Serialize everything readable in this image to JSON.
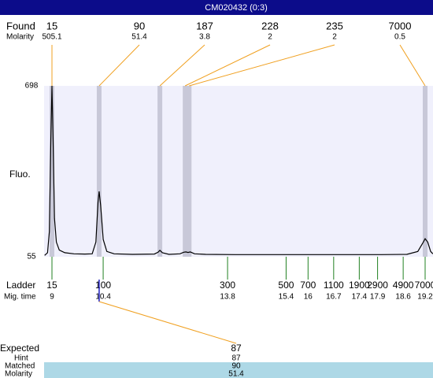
{
  "header": {
    "title": "CM020432 (0:3)"
  },
  "found": {
    "label": "Found",
    "molarity_label": "Molarity",
    "peaks": [
      {
        "size": 15,
        "molarity": 505.1,
        "time": 9.0
      },
      {
        "size": 90,
        "molarity": 51.4,
        "time": 10.29
      },
      {
        "size": 187,
        "molarity": 3.8,
        "time": 11.95
      },
      {
        "size": 228,
        "molarity": 2,
        "time": 12.64
      },
      {
        "size": 235,
        "molarity": 2,
        "time": 12.75
      },
      {
        "size": 7000,
        "molarity": 0.5,
        "time": 19.2
      }
    ]
  },
  "plot": {
    "y_label": "Fluo.",
    "ylim": [
      55,
      698
    ],
    "yticks": [
      55,
      698
    ],
    "xlim": [
      8.785,
      19.415
    ],
    "trace": {
      "x": [
        8.8,
        8.88,
        8.93,
        8.97,
        9.0,
        9.03,
        9.07,
        9.12,
        9.2,
        9.35,
        9.6,
        9.9,
        10.1,
        10.2,
        10.26,
        10.29,
        10.33,
        10.4,
        10.5,
        10.7,
        11.2,
        11.8,
        11.9,
        11.95,
        12.02,
        12.2,
        12.5,
        12.6,
        12.66,
        12.72,
        12.78,
        12.9,
        13.2,
        14,
        15,
        16,
        17,
        18,
        18.7,
        19.0,
        19.15,
        19.2,
        19.27,
        19.35,
        19.41
      ],
      "values": [
        60,
        70,
        150,
        500,
        698,
        500,
        200,
        110,
        80,
        70,
        66,
        65,
        66,
        110,
        260,
        301,
        250,
        120,
        75,
        66,
        64,
        65,
        72,
        79,
        70,
        64,
        66,
        72,
        73,
        71,
        73,
        66,
        64,
        63,
        63,
        63,
        63,
        63,
        64,
        75,
        110,
        123,
        110,
        75,
        66
      ]
    }
  },
  "ladder": {
    "label": "Ladder",
    "time_label": "Mig. time",
    "items": [
      {
        "size": 15,
        "time": 9
      },
      {
        "size": 100,
        "time": 10.4
      },
      {
        "size": 300,
        "time": 13.8
      },
      {
        "size": 500,
        "time": 15.4
      },
      {
        "size": 700,
        "time": 16
      },
      {
        "size": 1100,
        "time": 16.7
      },
      {
        "size": 1900,
        "time": 17.4
      },
      {
        "size": 2900,
        "time": 17.9
      },
      {
        "size": 4900,
        "time": 18.6
      },
      {
        "size": 7000,
        "time": 19.2
      }
    ]
  },
  "expected": {
    "label": "Expected",
    "value": 87,
    "hint_label": "Hint",
    "hint": 87,
    "matched_label": "Matched",
    "matched": 90,
    "molarity_label": "Molarity",
    "molarity": 51.4
  }
}
